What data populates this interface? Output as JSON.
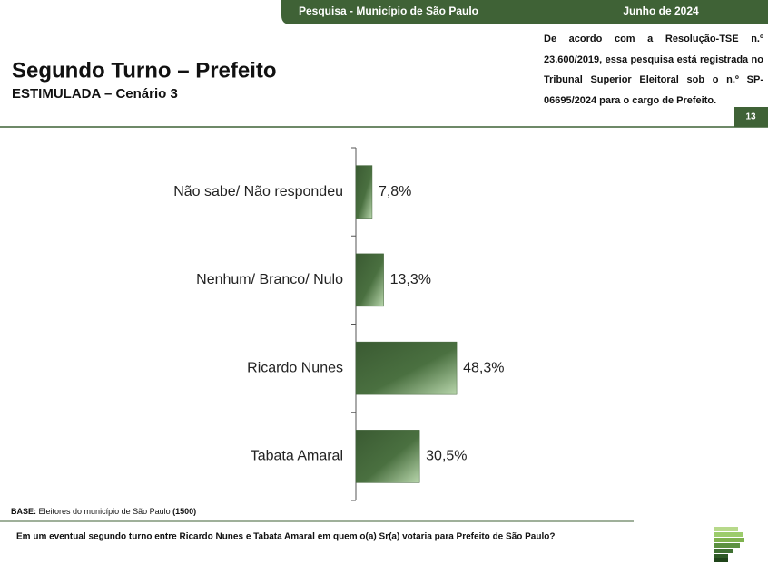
{
  "header": {
    "survey": "Pesquisa - Município de São Paulo",
    "date": "Junho de 2024"
  },
  "title": "Segundo Turno – Prefeito",
  "subtitle": "ESTIMULADA – Cenário 3",
  "notice": "De acordo com a Resolução-TSE n.º 23.600/2019, essa pesquisa está registrada no Tribunal Superior Eleitoral sob o n.º SP-06695/2024 para o cargo de Prefeito.",
  "page_number": "13",
  "base": {
    "label": "BASE:",
    "text": "Eleitores do município de São Paulo",
    "count": "(1500)"
  },
  "question": "Em um eventual segundo turno entre Ricardo Nunes e Tabata Amaral em quem o(a) Sr(a) votaria para Prefeito de São Paulo?",
  "chart_data": {
    "type": "hbar",
    "categories": [
      "Não sabe/ Não respondeu",
      "Nenhum/ Branco/ Nulo",
      "Ricardo Nunes",
      "Tabata Amaral"
    ],
    "values": [
      7.8,
      13.3,
      48.3,
      30.5
    ],
    "value_labels": [
      "7,8%",
      "13,3%",
      "48,3%",
      "30,5%"
    ],
    "color": "#3f6236"
  }
}
